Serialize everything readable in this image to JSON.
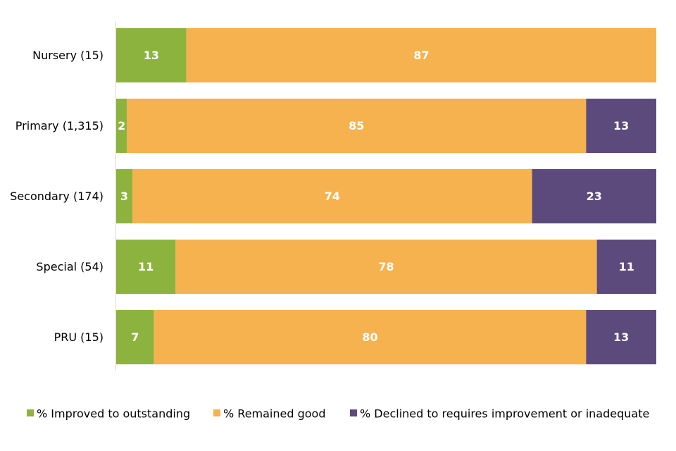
{
  "chart_data": {
    "type": "bar",
    "orientation": "horizontal",
    "stacked": true,
    "categories": [
      "Nursery (15)",
      "Primary (1,315)",
      "Secondary (174)",
      "Special (54)",
      "PRU (15)"
    ],
    "series": [
      {
        "name": "% Improved to outstanding",
        "color": "#8db33f",
        "values": [
          13,
          2,
          3,
          11,
          7
        ]
      },
      {
        "name": "% Remained good",
        "color": "#f5b24f",
        "values": [
          87,
          85,
          74,
          78,
          80
        ]
      },
      {
        "name": "% Declined to requires improvement or inadequate",
        "color": "#5d4a7c",
        "values": [
          0,
          13,
          23,
          11,
          13
        ]
      }
    ],
    "xlim": [
      0,
      100
    ],
    "grid": false,
    "legend_position": "bottom"
  }
}
